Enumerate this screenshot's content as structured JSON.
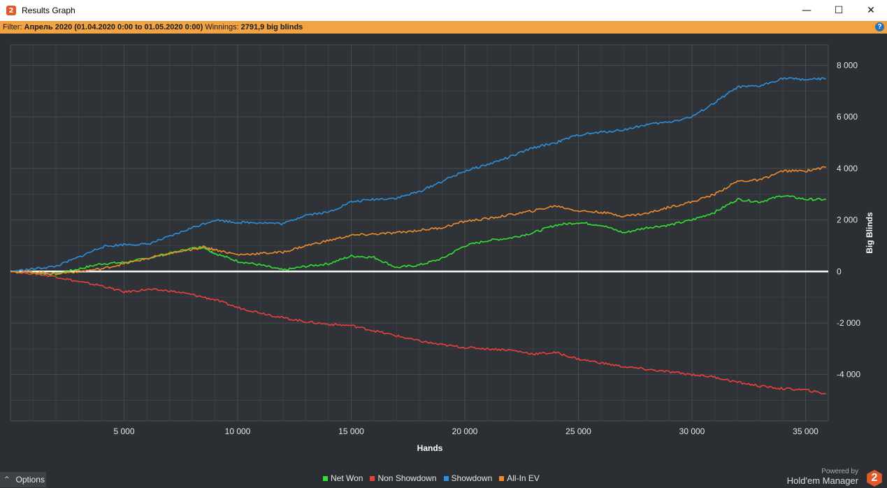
{
  "window": {
    "title": "Results Graph",
    "app_icon_glyph": "2",
    "minimize_glyph": "—",
    "maximize_glyph": "☐",
    "close_glyph": "✕"
  },
  "filter": {
    "label": "Filter:",
    "value": "Апрель 2020 (01.04.2020 0:00 to 01.05.2020 0:00)",
    "winnings_label": "Winnings:",
    "winnings_value": "2791,9 big blinds",
    "help_glyph": "?"
  },
  "chart_data": {
    "type": "line",
    "xlabel": "Hands",
    "ylabel": "Big Blinds",
    "xlim": [
      0,
      36000
    ],
    "ylim": [
      -5800,
      8800
    ],
    "x_ticks": [
      5000,
      10000,
      15000,
      20000,
      25000,
      30000,
      35000
    ],
    "x_tick_labels": [
      "5 000",
      "10 000",
      "15 000",
      "20 000",
      "25 000",
      "30 000",
      "35 000"
    ],
    "y_ticks": [
      8000,
      6000,
      4000,
      2000,
      0,
      -2000,
      -4000
    ],
    "y_tick_labels": [
      "8 000",
      "6 000",
      "4 000",
      "2 000",
      "0",
      "-2 000",
      "-4 000"
    ],
    "grid": true,
    "legend_position": "bottom",
    "series": [
      {
        "name": "Net Won",
        "color": "#33e033",
        "x": [
          0,
          1000,
          2000,
          3000,
          4000,
          5000,
          6000,
          7000,
          8000,
          8500,
          9000,
          10000,
          11000,
          12000,
          13000,
          14000,
          15000,
          16000,
          17000,
          18000,
          19000,
          20000,
          21000,
          22000,
          23000,
          24000,
          25000,
          26000,
          27000,
          28000,
          29000,
          30000,
          31000,
          32000,
          33000,
          34000,
          35000,
          35900
        ],
        "values": [
          0,
          -50,
          -100,
          100,
          300,
          350,
          500,
          700,
          900,
          950,
          700,
          400,
          250,
          50,
          200,
          300,
          600,
          550,
          150,
          250,
          500,
          1000,
          1200,
          1300,
          1500,
          1800,
          1900,
          1800,
          1500,
          1700,
          1800,
          2000,
          2300,
          2800,
          2700,
          2950,
          2800,
          2790
        ]
      },
      {
        "name": "Non Showdown",
        "color": "#e8403c",
        "x": [
          0,
          1000,
          2000,
          3000,
          4000,
          5000,
          6000,
          7000,
          8000,
          9000,
          10000,
          11000,
          12000,
          13000,
          14000,
          15000,
          16000,
          17000,
          18000,
          19000,
          20000,
          21000,
          22000,
          23000,
          24000,
          25000,
          26000,
          27000,
          28000,
          29000,
          30000,
          31000,
          32000,
          33000,
          34000,
          35000,
          35900
        ],
        "values": [
          0,
          -80,
          -200,
          -400,
          -550,
          -800,
          -700,
          -750,
          -900,
          -1100,
          -1400,
          -1600,
          -1800,
          -1950,
          -2050,
          -2100,
          -2300,
          -2500,
          -2700,
          -2850,
          -2950,
          -3000,
          -3050,
          -3200,
          -3150,
          -3400,
          -3550,
          -3700,
          -3800,
          -3900,
          -4000,
          -4100,
          -4300,
          -4450,
          -4550,
          -4600,
          -4750
        ]
      },
      {
        "name": "Showdown",
        "color": "#2d8fdc",
        "x": [
          0,
          1000,
          2000,
          3000,
          4000,
          5000,
          6000,
          7000,
          8000,
          9000,
          10000,
          11000,
          12000,
          13000,
          14000,
          15000,
          16000,
          17000,
          18000,
          19000,
          20000,
          21000,
          22000,
          23000,
          24000,
          25000,
          26000,
          27000,
          28000,
          29000,
          30000,
          31000,
          32000,
          33000,
          34000,
          35000,
          35900
        ],
        "values": [
          0,
          100,
          200,
          550,
          950,
          1050,
          1050,
          1350,
          1700,
          2000,
          1900,
          1900,
          1850,
          2200,
          2300,
          2700,
          2800,
          2850,
          3100,
          3500,
          3900,
          4150,
          4450,
          4800,
          5000,
          5300,
          5400,
          5500,
          5700,
          5800,
          6000,
          6550,
          7150,
          7200,
          7500,
          7450,
          7480
        ]
      },
      {
        "name": "All-In EV",
        "color": "#f08a2c",
        "x": [
          0,
          1000,
          2000,
          3000,
          4000,
          5000,
          6000,
          7000,
          8000,
          8500,
          9000,
          10000,
          11000,
          12000,
          13000,
          14000,
          15000,
          16000,
          17000,
          18000,
          19000,
          20000,
          21000,
          22000,
          23000,
          24000,
          25000,
          26000,
          27000,
          28000,
          29000,
          30000,
          31000,
          32000,
          33000,
          34000,
          35000,
          35900
        ],
        "values": [
          0,
          -30,
          -80,
          0,
          100,
          300,
          500,
          700,
          850,
          950,
          850,
          650,
          700,
          750,
          1000,
          1200,
          1400,
          1450,
          1500,
          1600,
          1700,
          1950,
          2050,
          2200,
          2350,
          2550,
          2350,
          2300,
          2150,
          2250,
          2500,
          2700,
          3000,
          3500,
          3550,
          3900,
          3900,
          4050
        ]
      }
    ]
  },
  "bottom": {
    "options_label": "Options",
    "options_chevron": "^",
    "powered_by": "Powered by",
    "brand": "Hold'em Manager",
    "logo_glyph": "2"
  }
}
